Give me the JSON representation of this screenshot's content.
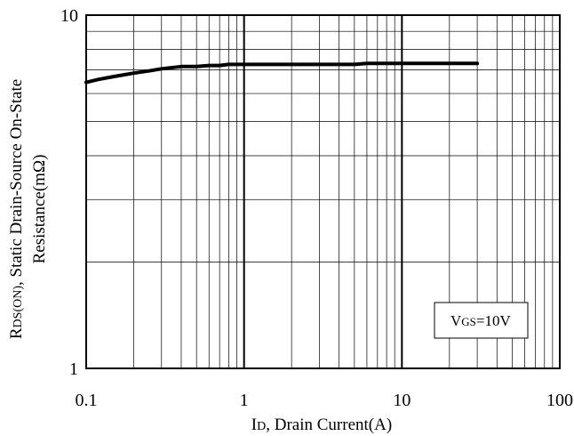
{
  "chart_data": {
    "type": "line",
    "x_scale": "log",
    "y_scale": "log",
    "xlim": [
      0.1,
      100
    ],
    "ylim": [
      1,
      10
    ],
    "x_ticks": [
      "0.1",
      "1",
      "10",
      "100"
    ],
    "y_ticks": [
      "10",
      "1"
    ],
    "grid": true,
    "xlabel": {
      "main": "I",
      "sub": "D",
      "rest": ", Drain Current(A)"
    },
    "ylabel": {
      "line1_main": "R",
      "line1_sub": "DS(ON)",
      "line1_rest": ", Static Drain-Source On-State",
      "line2": "Resistance(mΩ)"
    },
    "annotation": {
      "main": "V",
      "sub": "GS",
      "rest": "=10V"
    },
    "series": [
      {
        "x": [
          0.1,
          0.12,
          0.15,
          0.2,
          0.25,
          0.3,
          0.4,
          0.5,
          0.6,
          0.7,
          0.8,
          1,
          2,
          5,
          6,
          10,
          20,
          30
        ],
        "y": [
          6.45,
          6.58,
          6.7,
          6.85,
          6.95,
          7.05,
          7.15,
          7.15,
          7.2,
          7.2,
          7.25,
          7.25,
          7.25,
          7.25,
          7.3,
          7.3,
          7.3,
          7.3
        ]
      }
    ]
  }
}
